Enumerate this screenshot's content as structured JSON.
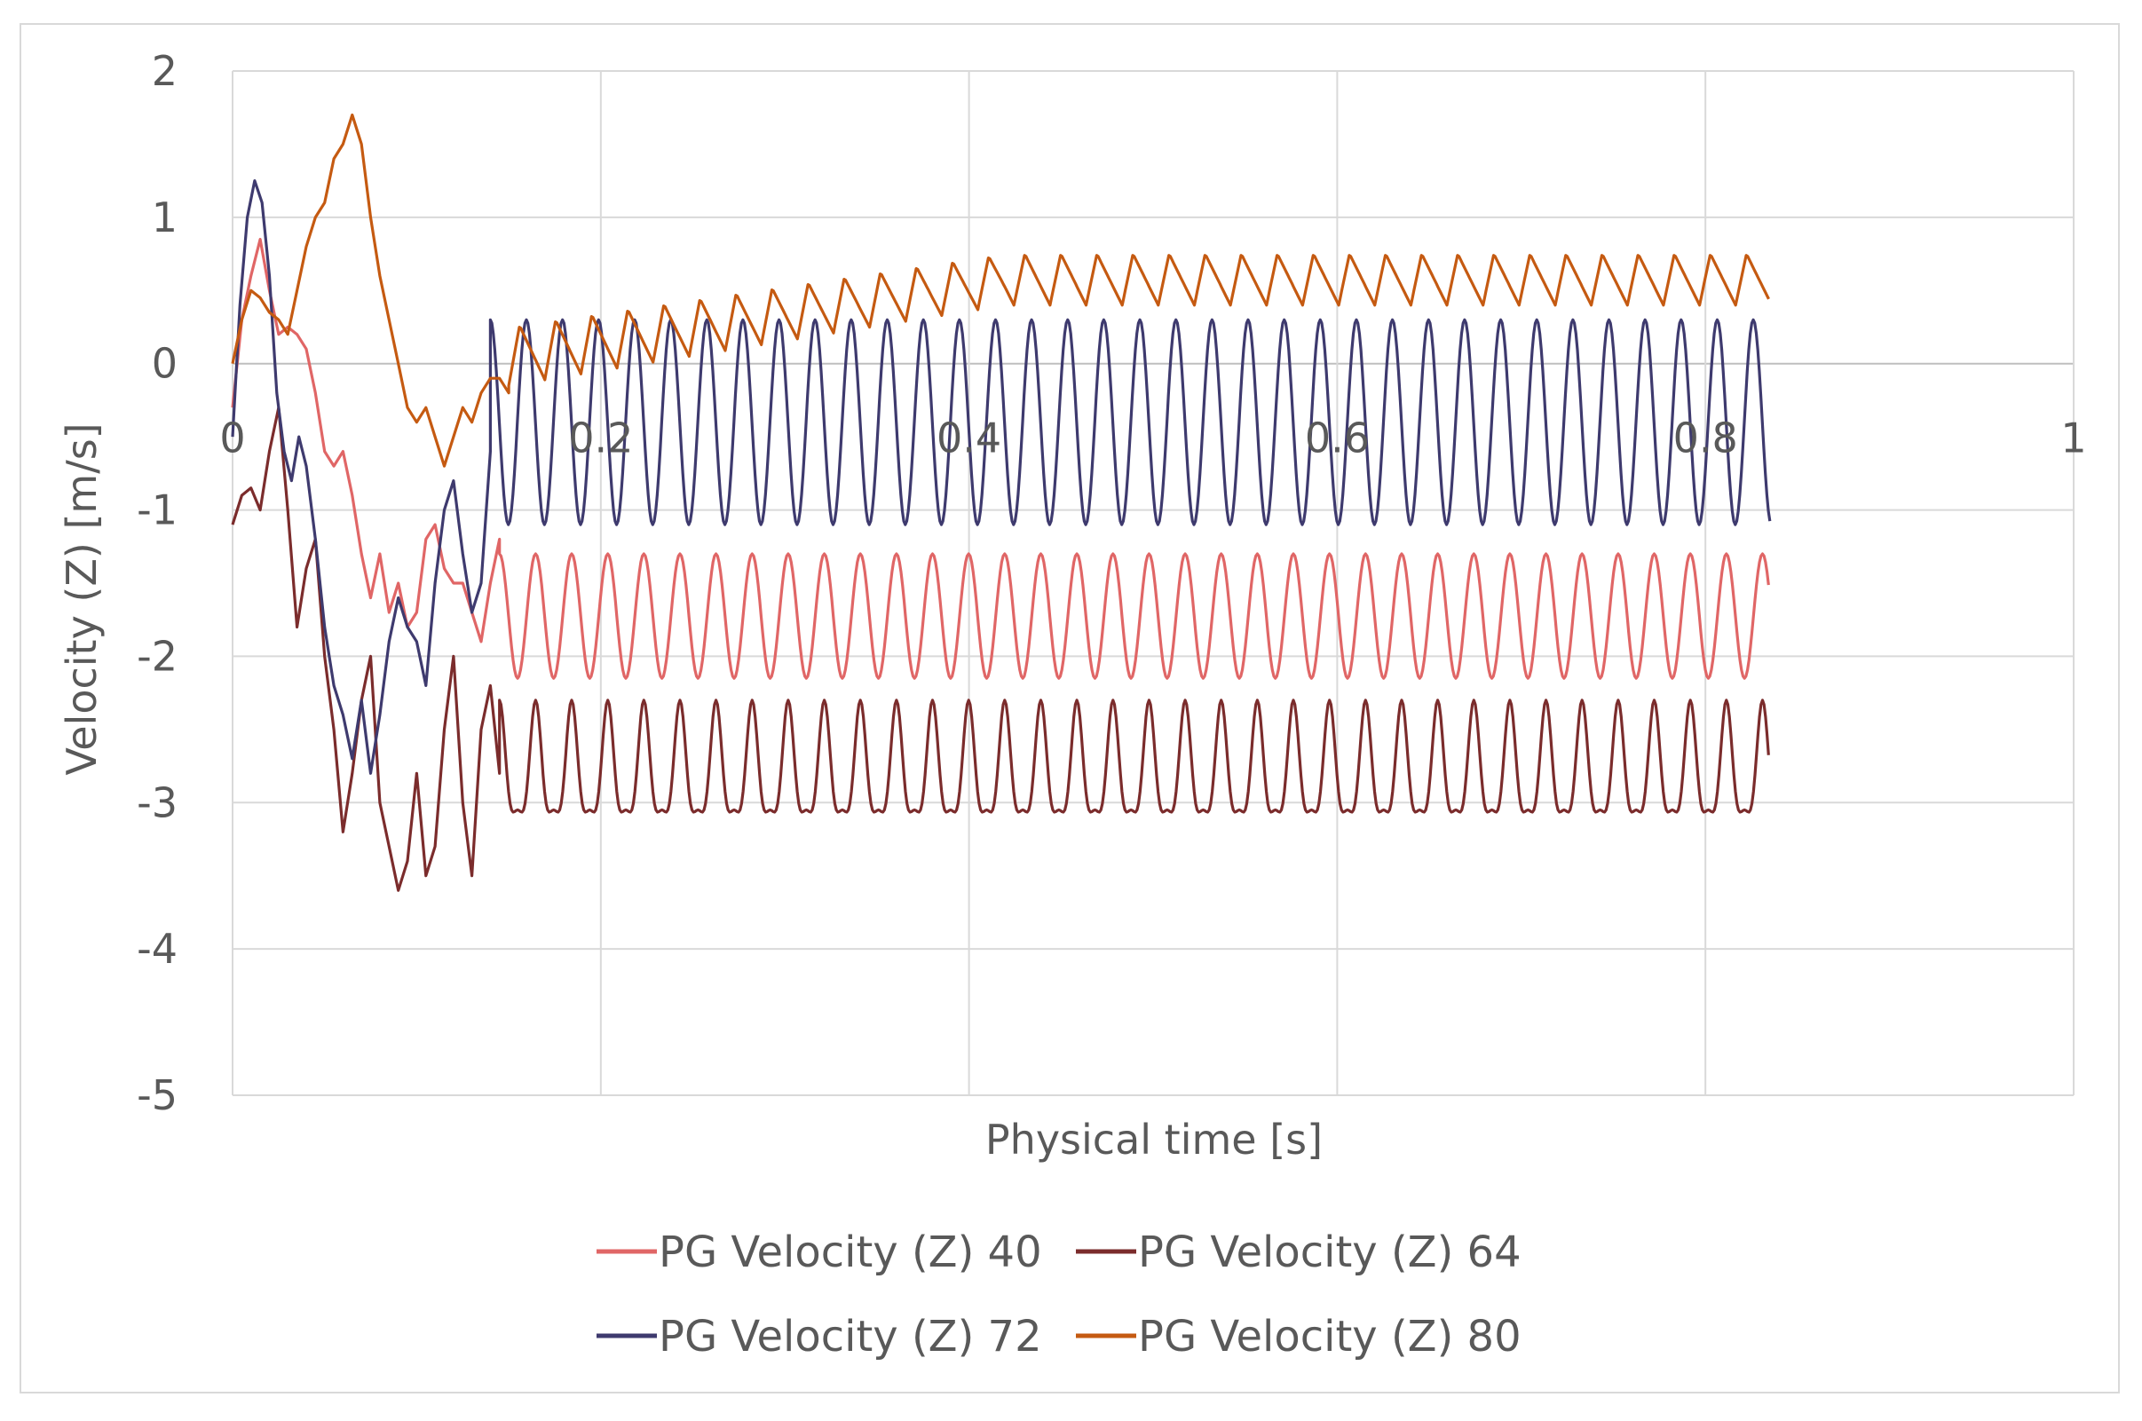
{
  "chart_data": {
    "type": "line",
    "title": "",
    "xlabel": "Physical time [s]",
    "ylabel": "Velocity (Z) [m/s]",
    "xlim": [
      0,
      1
    ],
    "ylim": [
      -5,
      2
    ],
    "x_ticks": [
      "0",
      "0.2",
      "0.4",
      "0.6",
      "0.8",
      "1"
    ],
    "y_ticks": [
      "2",
      "1",
      "0",
      "-1",
      "-2",
      "-3",
      "-4",
      "-5"
    ],
    "grid": true,
    "legend_position": "bottom",
    "series": [
      {
        "name": "PG Velocity (Z) 40",
        "color": "#E06666",
        "transient": [
          [
            0,
            -0.3
          ],
          [
            0.005,
            0.3
          ],
          [
            0.01,
            0.6
          ],
          [
            0.015,
            0.85
          ],
          [
            0.02,
            0.5
          ],
          [
            0.025,
            0.2
          ],
          [
            0.03,
            0.25
          ],
          [
            0.035,
            0.2
          ],
          [
            0.04,
            0.1
          ],
          [
            0.045,
            -0.2
          ],
          [
            0.05,
            -0.6
          ],
          [
            0.055,
            -0.7
          ],
          [
            0.06,
            -0.6
          ],
          [
            0.065,
            -0.9
          ],
          [
            0.07,
            -1.3
          ],
          [
            0.075,
            -1.6
          ],
          [
            0.08,
            -1.3
          ],
          [
            0.085,
            -1.7
          ],
          [
            0.09,
            -1.5
          ],
          [
            0.095,
            -1.8
          ],
          [
            0.1,
            -1.7
          ],
          [
            0.105,
            -1.2
          ],
          [
            0.11,
            -1.1
          ],
          [
            0.115,
            -1.4
          ],
          [
            0.12,
            -1.5
          ],
          [
            0.125,
            -1.5
          ],
          [
            0.13,
            -1.7
          ],
          [
            0.135,
            -1.9
          ],
          [
            0.14,
            -1.5
          ],
          [
            0.145,
            -1.2
          ]
        ],
        "osc": {
          "t0": 0.145,
          "t1": 0.835,
          "period": 0.0196,
          "high": -1.3,
          "low": -2.15
        }
      },
      {
        "name": "PG Velocity (Z) 64",
        "color": "#7B2C2C",
        "transient": [
          [
            0,
            -1.1
          ],
          [
            0.005,
            -0.9
          ],
          [
            0.01,
            -0.85
          ],
          [
            0.015,
            -1.0
          ],
          [
            0.02,
            -0.6
          ],
          [
            0.025,
            -0.3
          ],
          [
            0.03,
            -1.0
          ],
          [
            0.035,
            -1.8
          ],
          [
            0.04,
            -1.4
          ],
          [
            0.045,
            -1.2
          ],
          [
            0.05,
            -2.0
          ],
          [
            0.055,
            -2.5
          ],
          [
            0.06,
            -3.2
          ],
          [
            0.065,
            -2.8
          ],
          [
            0.07,
            -2.3
          ],
          [
            0.075,
            -2.0
          ],
          [
            0.08,
            -3.0
          ],
          [
            0.085,
            -3.3
          ],
          [
            0.09,
            -3.6
          ],
          [
            0.095,
            -3.4
          ],
          [
            0.1,
            -2.8
          ],
          [
            0.105,
            -3.5
          ],
          [
            0.11,
            -3.3
          ],
          [
            0.115,
            -2.5
          ],
          [
            0.12,
            -2.0
          ],
          [
            0.125,
            -3.0
          ],
          [
            0.13,
            -3.5
          ],
          [
            0.135,
            -2.5
          ],
          [
            0.14,
            -2.2
          ],
          [
            0.145,
            -2.8
          ]
        ],
        "osc": {
          "t0": 0.145,
          "t1": 0.835,
          "period": 0.0196,
          "high": -2.3,
          "low": -3.3
        }
      },
      {
        "name": "PG Velocity (Z) 72",
        "color": "#3E3A6E",
        "transient": [
          [
            0,
            -0.5
          ],
          [
            0.004,
            0.4
          ],
          [
            0.008,
            1.0
          ],
          [
            0.012,
            1.25
          ],
          [
            0.016,
            1.1
          ],
          [
            0.02,
            0.6
          ],
          [
            0.024,
            -0.2
          ],
          [
            0.028,
            -0.6
          ],
          [
            0.032,
            -0.8
          ],
          [
            0.036,
            -0.5
          ],
          [
            0.04,
            -0.7
          ],
          [
            0.045,
            -1.2
          ],
          [
            0.05,
            -1.8
          ],
          [
            0.055,
            -2.2
          ],
          [
            0.06,
            -2.4
          ],
          [
            0.065,
            -2.7
          ],
          [
            0.07,
            -2.3
          ],
          [
            0.075,
            -2.8
          ],
          [
            0.08,
            -2.4
          ],
          [
            0.085,
            -1.9
          ],
          [
            0.09,
            -1.6
          ],
          [
            0.095,
            -1.8
          ],
          [
            0.1,
            -1.9
          ],
          [
            0.105,
            -2.2
          ],
          [
            0.11,
            -1.5
          ],
          [
            0.115,
            -1.0
          ],
          [
            0.12,
            -0.8
          ],
          [
            0.125,
            -1.3
          ],
          [
            0.13,
            -1.7
          ],
          [
            0.135,
            -1.5
          ],
          [
            0.14,
            -0.6
          ]
        ],
        "osc": {
          "t0": 0.14,
          "t1": 0.835,
          "period": 0.0196,
          "high": 0.3,
          "low": -1.1
        }
      },
      {
        "name": "PG Velocity (Z) 80",
        "color": "#C55A11",
        "transient": [
          [
            0,
            0.0
          ],
          [
            0.005,
            0.3
          ],
          [
            0.01,
            0.5
          ],
          [
            0.015,
            0.45
          ],
          [
            0.02,
            0.35
          ],
          [
            0.025,
            0.3
          ],
          [
            0.03,
            0.2
          ],
          [
            0.035,
            0.5
          ],
          [
            0.04,
            0.8
          ],
          [
            0.045,
            1.0
          ],
          [
            0.05,
            1.1
          ],
          [
            0.055,
            1.4
          ],
          [
            0.06,
            1.5
          ],
          [
            0.065,
            1.7
          ],
          [
            0.07,
            1.5
          ],
          [
            0.075,
            1.0
          ],
          [
            0.08,
            0.6
          ],
          [
            0.085,
            0.3
          ],
          [
            0.09,
            0.0
          ],
          [
            0.095,
            -0.3
          ],
          [
            0.1,
            -0.4
          ],
          [
            0.105,
            -0.3
          ],
          [
            0.11,
            -0.5
          ],
          [
            0.115,
            -0.7
          ],
          [
            0.12,
            -0.5
          ],
          [
            0.125,
            -0.3
          ],
          [
            0.13,
            -0.4
          ],
          [
            0.135,
            -0.2
          ],
          [
            0.14,
            -0.1
          ],
          [
            0.145,
            -0.1
          ],
          [
            0.15,
            -0.2
          ]
        ],
        "osc": {
          "t0": 0.15,
          "t1": 0.835,
          "period": 0.0196,
          "high_start": 0.25,
          "high_end": 0.75,
          "low_start": -0.15,
          "low_end": 0.4,
          "ramp_end": 0.42
        }
      }
    ]
  },
  "legend": {
    "row1": [
      "PG Velocity (Z) 40",
      "PG Velocity (Z) 64"
    ],
    "row2": [
      "PG Velocity (Z) 72",
      "PG Velocity (Z) 80"
    ]
  }
}
